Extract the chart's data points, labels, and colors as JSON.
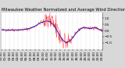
{
  "title": "Milwaukee Weather Normalized and Average Wind Direction (Last 24 Hours)",
  "bg_color": "#d8d8d8",
  "plot_bg_color": "#ffffff",
  "red_color": "#ff0000",
  "blue_color": "#0000cc",
  "grid_color": "#aaaaaa",
  "n_points": 288,
  "ylim": [
    -1.5,
    1.5
  ],
  "y_ticks": [
    -1.0,
    -0.5,
    0.0,
    0.5,
    1.0
  ],
  "title_fontsize": 3.8,
  "tick_fontsize": 3.0,
  "n_xticks": 25
}
